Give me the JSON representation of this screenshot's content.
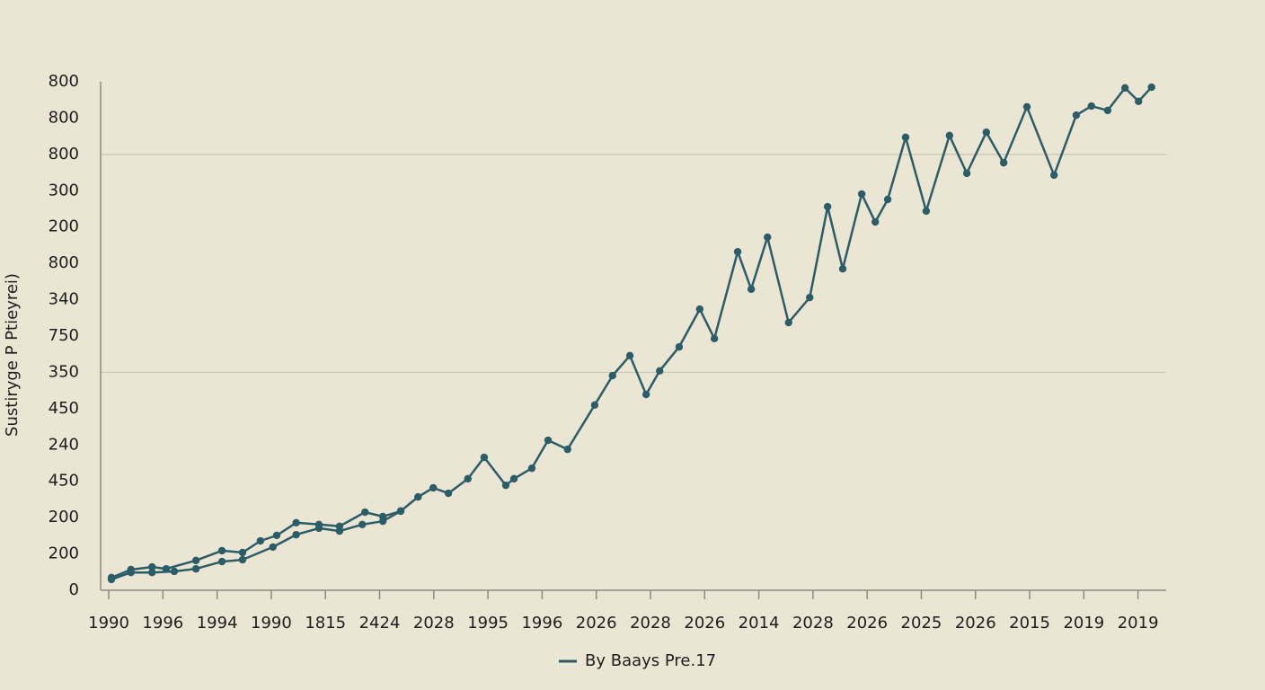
{
  "chart_data": {
    "type": "line",
    "y_label": "Sustiryge P Ptieyrei)",
    "xlim": [
      -0.15,
      19.52
    ],
    "xticks": [
      {
        "value": 0,
        "label": "1990"
      },
      {
        "value": 1,
        "label": "1996"
      },
      {
        "value": 2,
        "label": "1994"
      },
      {
        "value": 3,
        "label": "1990"
      },
      {
        "value": 4,
        "label": "1815"
      },
      {
        "value": 5,
        "label": "2424"
      },
      {
        "value": 6,
        "label": "2028"
      },
      {
        "value": 7,
        "label": "1995"
      },
      {
        "value": 8,
        "label": "1996"
      },
      {
        "value": 9,
        "label": "2026"
      },
      {
        "value": 10,
        "label": "2028"
      },
      {
        "value": 11,
        "label": "2026"
      },
      {
        "value": 12,
        "label": "2014"
      },
      {
        "value": 13,
        "label": "2028"
      },
      {
        "value": 14,
        "label": "2026"
      },
      {
        "value": 15,
        "label": "2025"
      },
      {
        "value": 16,
        "label": "2026"
      },
      {
        "value": 17,
        "label": "2015"
      },
      {
        "value": 18,
        "label": "2019"
      },
      {
        "value": 19,
        "label": "2019"
      }
    ],
    "ylim": [
      0,
      14
    ],
    "yticks": [
      {
        "value": 0,
        "label": "0"
      },
      {
        "value": 1,
        "label": "200"
      },
      {
        "value": 2,
        "label": "200"
      },
      {
        "value": 3,
        "label": "450"
      },
      {
        "value": 4,
        "label": "240"
      },
      {
        "value": 5,
        "label": "450"
      },
      {
        "value": 6,
        "label": "350"
      },
      {
        "value": 7,
        "label": "750"
      },
      {
        "value": 8,
        "label": "340"
      },
      {
        "value": 9,
        "label": "800"
      },
      {
        "value": 10,
        "label": "200"
      },
      {
        "value": 11,
        "label": "300"
      },
      {
        "value": 12,
        "label": "800"
      },
      {
        "value": 13,
        "label": "800"
      },
      {
        "value": 14,
        "label": "800"
      }
    ],
    "ygrid": [
      6,
      12
    ],
    "series": [
      {
        "name": "By Baays Pre.17",
        "color": "#2b5d68",
        "x": [
          0.05,
          0.41,
          0.8,
          1.06,
          1.61,
          2.09,
          2.47,
          2.8,
          3.1,
          3.46,
          3.88,
          4.26,
          4.73,
          5.06,
          5.39,
          5.71,
          5.99,
          6.27,
          6.63,
          6.93,
          7.33,
          7.48,
          7.81,
          8.11,
          8.47,
          8.97,
          9.3,
          9.62,
          9.92,
          10.17,
          10.53,
          10.91,
          11.18,
          11.61,
          11.86,
          12.16,
          12.55,
          12.94,
          13.27,
          13.55,
          13.9,
          14.15,
          14.38,
          14.71,
          15.09,
          15.52,
          15.84,
          16.2,
          16.52,
          16.95,
          17.45,
          17.86,
          18.14,
          18.44,
          18.76,
          19.01,
          19.25
        ],
        "values": [
          0.35,
          0.57,
          0.64,
          0.59,
          0.82,
          1.09,
          1.04,
          1.36,
          1.51,
          1.86,
          1.81,
          1.76,
          2.15,
          2.03,
          2.18,
          2.57,
          2.82,
          2.67,
          3.07,
          3.66,
          2.89,
          3.07,
          3.36,
          4.13,
          3.88,
          5.1,
          5.91,
          6.46,
          5.39,
          6.04,
          6.7,
          7.74,
          6.93,
          9.32,
          8.29,
          9.72,
          7.37,
          8.06,
          10.56,
          8.85,
          10.91,
          10.14,
          10.76,
          12.47,
          10.44,
          12.52,
          11.48,
          12.61,
          11.77,
          13.31,
          11.43,
          13.08,
          13.33,
          13.21,
          13.83,
          13.46,
          13.85
        ]
      },
      {
        "color": "#2b5d68",
        "x": [
          0.05,
          0.41,
          0.8,
          1.21,
          1.61,
          2.09,
          2.47,
          3.03,
          3.46,
          3.88,
          4.26,
          4.68,
          5.06,
          5.39
        ],
        "values": [
          0.3,
          0.49,
          0.49,
          0.52,
          0.59,
          0.79,
          0.84,
          1.19,
          1.53,
          1.71,
          1.63,
          1.81,
          1.9,
          2.18
        ]
      }
    ]
  }
}
